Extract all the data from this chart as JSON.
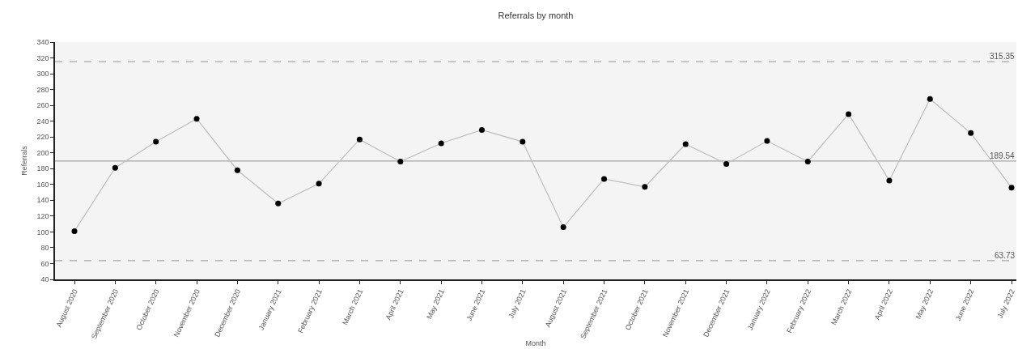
{
  "chart_data": {
    "type": "line",
    "title": "Referrals by month",
    "xlabel": "Month",
    "ylabel": "Referrals",
    "categories": [
      "August 2020",
      "September 2020",
      "October 2020",
      "November 2020",
      "December 2020",
      "January 2021",
      "February 2021",
      "March 2021",
      "April 2021",
      "May 2021",
      "June 2021",
      "July 2021",
      "August 2021",
      "September 2021",
      "October 2021",
      "November 2021",
      "December 2021",
      "January 2022",
      "February 2022",
      "March 2022",
      "April 2022",
      "May 2022",
      "June 2022",
      "July 2022"
    ],
    "series": [
      {
        "color": "#bdbdbd",
        "colors": [
          "#000000",
          "#000000",
          "#000000",
          "#000000",
          "#000000",
          "#000000",
          "#000000",
          "#000000",
          "#000000",
          "#000000",
          "#000000",
          "#000000",
          "#000000",
          "#000000",
          "#000000",
          "#000000",
          "#000000",
          "#000000",
          "#000000",
          "#000000",
          "#000000",
          "#000000",
          "#000000",
          "#000000"
        ],
        "values": [
          101,
          181,
          214,
          243,
          178,
          136,
          161,
          217,
          189,
          212,
          229,
          214,
          106,
          167,
          157,
          211,
          186,
          215,
          189,
          249,
          165,
          268,
          225,
          156
        ]
      }
    ],
    "ylim": [
      40,
      340
    ],
    "yticks": [
      40,
      60,
      80,
      100,
      120,
      140,
      160,
      180,
      200,
      220,
      240,
      260,
      280,
      300,
      320,
      340
    ],
    "ref_lines": [
      {
        "axis": "y",
        "value": 315.35,
        "label": "315.35",
        "color": "#a6a6a6",
        "line_style": "dashed"
      },
      {
        "axis": "y",
        "value": 189.54,
        "label": "189.54",
        "color": "#a6a6a6",
        "line_style": "solid"
      },
      {
        "axis": "y",
        "value": 63.73,
        "label": "63.73",
        "color": "#a6a6a6",
        "line_style": "dashed"
      }
    ],
    "grid": false,
    "marker": "circle",
    "line_style": "solid"
  }
}
